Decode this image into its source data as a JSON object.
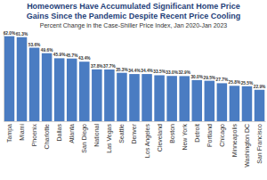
{
  "chart_data": {
    "type": "bar",
    "title": [
      "Homeowners Have Accumulated Significant Home Price",
      "Gains Since the Pandemic Despite Recent Price Cooling"
    ],
    "subtitle": "Percent Change in the Case-Shiller Price Index, Jan 2020-Jan 2023",
    "categories": [
      "Tampa",
      "Miami",
      "Phoenix",
      "Charlotte",
      "Dallas",
      "Atlanta",
      "San Diego",
      "National",
      "Las Vegas",
      "Seattle",
      "Denver",
      "Los Angeles",
      "Cleveland",
      "Boston",
      "New York",
      "Detroit",
      "Portland",
      "Chicago",
      "Minneapolis",
      "Washington DC",
      "San Francisco"
    ],
    "values": [
      62.0,
      61.3,
      53.6,
      49.6,
      45.9,
      45.7,
      43.4,
      37.8,
      37.7,
      35.3,
      34.4,
      34.4,
      33.5,
      33.0,
      32.9,
      30.0,
      29.5,
      27.7,
      25.8,
      25.5,
      22.9
    ],
    "value_labels": [
      "62.0%",
      "61.3%",
      "53.6%",
      "49.6%",
      "45.9%",
      "45.7%",
      "43.4%",
      "37.8%",
      "37.7%",
      "35.3%",
      "34.4%",
      "34.4%",
      "33.5%",
      "33.0%",
      "32.9%",
      "30.0%",
      "29.5%",
      "27.7%",
      "25.8%",
      "25.5%",
      "22.9%"
    ],
    "color": "#4a7cc2",
    "ylim": [
      0,
      65
    ],
    "grid": false,
    "data_labels": true,
    "tick_labels": "x"
  }
}
